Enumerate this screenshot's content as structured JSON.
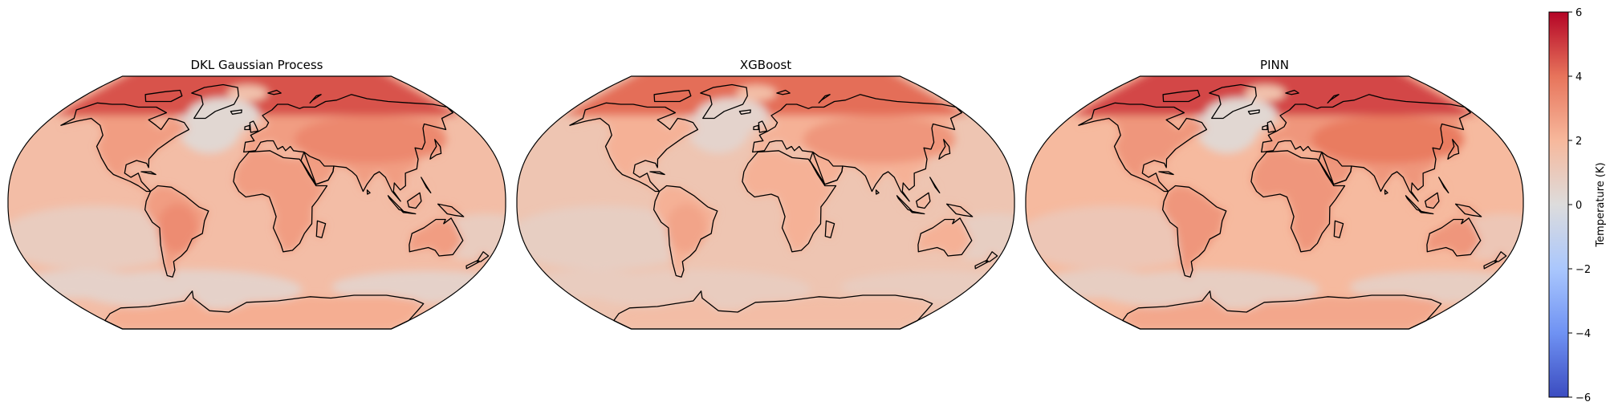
{
  "maps": [
    {
      "id": "dkl",
      "title": "DKL Gaussian Process",
      "field": {
        "arctic": 4.6,
        "lowland_land": 2.8,
        "asia_interior": 3.4,
        "ocean_base": 1.7,
        "north_atlantic": 0.3,
        "southern_ocean": 0.6,
        "pacific_cool": 0.9,
        "south_america": 3.3
      }
    },
    {
      "id": "xgboost",
      "title": "XGBoost",
      "field": {
        "arctic": 4.1,
        "lowland_land": 2.2,
        "asia_interior": 3.0,
        "ocean_base": 1.3,
        "north_atlantic": 0.5,
        "southern_ocean": 0.9,
        "pacific_cool": 0.8,
        "south_america": 2.6
      }
    },
    {
      "id": "pinn",
      "title": "PINN",
      "field": {
        "arctic": 4.8,
        "lowland_land": 3.0,
        "asia_interior": 3.8,
        "ocean_base": 1.9,
        "north_atlantic": 0.3,
        "southern_ocean": 0.8,
        "pacific_cool": 1.2,
        "south_america": 3.0
      }
    }
  ],
  "colorbar": {
    "label": "Temperature (K)",
    "colormap": "coolwarm",
    "range": [
      -6,
      6
    ],
    "ticks": [
      {
        "value": 6,
        "label": "6"
      },
      {
        "value": 4,
        "label": "4"
      },
      {
        "value": 2,
        "label": "2"
      },
      {
        "value": 0,
        "label": "0"
      },
      {
        "value": -2,
        "label": "−2"
      },
      {
        "value": -4,
        "label": "−4"
      },
      {
        "value": -6,
        "label": "−6"
      }
    ],
    "colors": [
      "#3b4cc0",
      "#6f92f3",
      "#aac7fd",
      "#dddcdc",
      "#f7b89c",
      "#e7745b",
      "#b40426"
    ]
  },
  "coastline_color": "#000000"
}
